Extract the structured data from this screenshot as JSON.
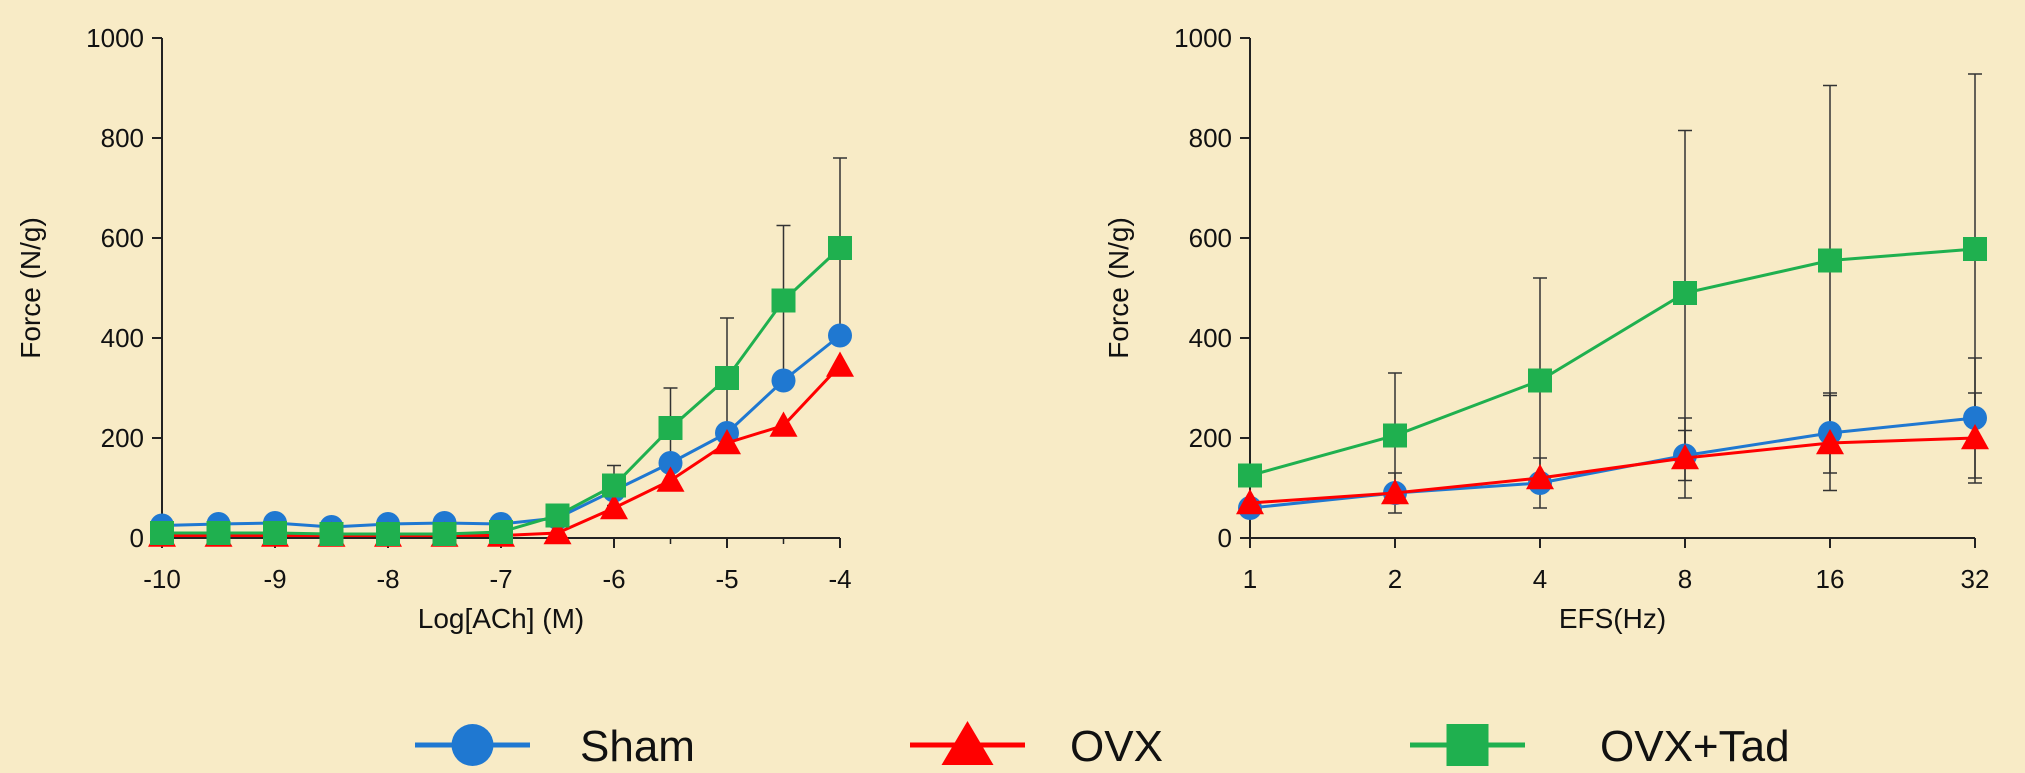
{
  "colors": {
    "background": "#f8ebc6",
    "sham": "#1f78d1",
    "ovx": "#ff0000",
    "ovx_tad": "#1fb04f",
    "axis": "#222222"
  },
  "legend": [
    {
      "key": "sham",
      "label": "Sham",
      "marker": "circle"
    },
    {
      "key": "ovx",
      "label": "OVX",
      "marker": "triangle"
    },
    {
      "key": "ovx_tad",
      "label": "OVX+Tad",
      "marker": "square"
    }
  ],
  "chart_data": [
    {
      "type": "line",
      "xlabel": "Log[ACh] (M)",
      "ylabel": "Force (N/g)",
      "xlim": [
        -10,
        -4
      ],
      "ylim": [
        0,
        1000
      ],
      "x_ticks": [
        "-10",
        "-9",
        "-8",
        "-7",
        "-6",
        "-5",
        "-4"
      ],
      "y_ticks": [
        "0",
        "200",
        "400",
        "600",
        "800",
        "1000"
      ],
      "x": [
        -10,
        -9.5,
        -9,
        -8.5,
        -8,
        -7.5,
        -7,
        -6.5,
        -6,
        -5.5,
        -5,
        -4.5,
        -4
      ],
      "series": [
        {
          "name": "Sham",
          "color_key": "sham",
          "marker": "circle",
          "values": [
            25,
            28,
            30,
            22,
            28,
            30,
            28,
            40,
            95,
            150,
            210,
            315,
            405
          ]
        },
        {
          "name": "OVX",
          "color_key": "ovx",
          "marker": "triangle",
          "values": [
            5,
            5,
            5,
            5,
            5,
            5,
            5,
            10,
            60,
            115,
            190,
            225,
            345
          ]
        },
        {
          "name": "OVX+Tad",
          "color_key": "ovx_tad",
          "marker": "square",
          "values": [
            10,
            10,
            10,
            8,
            8,
            8,
            12,
            45,
            105,
            220,
            320,
            475,
            580
          ],
          "errors": [
            0,
            0,
            0,
            0,
            0,
            0,
            0,
            0,
            40,
            80,
            120,
            150,
            180
          ]
        }
      ]
    },
    {
      "type": "line",
      "xlabel": "EFS(Hz)",
      "ylabel": "Force (N/g)",
      "xlim": [
        1,
        32
      ],
      "x_scale": "log2",
      "ylim": [
        0,
        1000
      ],
      "x_ticks": [
        "1",
        "2",
        "4",
        "8",
        "16",
        "32"
      ],
      "y_ticks": [
        "0",
        "200",
        "400",
        "600",
        "800",
        "1000"
      ],
      "x": [
        1,
        2,
        4,
        8,
        16,
        32
      ],
      "series": [
        {
          "name": "Sham",
          "color_key": "sham",
          "marker": "circle",
          "values": [
            60,
            90,
            110,
            165,
            210,
            240
          ],
          "errors": [
            0,
            0,
            50,
            50,
            80,
            120
          ]
        },
        {
          "name": "OVX",
          "color_key": "ovx",
          "marker": "triangle",
          "values": [
            70,
            90,
            120,
            160,
            190,
            200
          ],
          "errors": [
            0,
            40,
            0,
            80,
            95,
            90
          ]
        },
        {
          "name": "OVX+Tad",
          "color_key": "ovx_tad",
          "marker": "square",
          "values": [
            125,
            205,
            315,
            490,
            555,
            578
          ],
          "errors": [
            0,
            125,
            205,
            325,
            350,
            350
          ]
        }
      ]
    }
  ]
}
